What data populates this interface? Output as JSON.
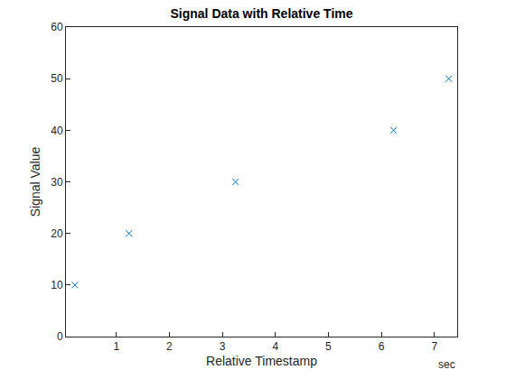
{
  "chart_data": {
    "type": "scatter",
    "title": "Signal Data with Relative Time",
    "x_label": "Relative Timestamp",
    "y_label": "Signal Value",
    "annotations": [
      {
        "text": "sec"
      }
    ],
    "x": [
      0.22,
      1.24,
      3.25,
      6.23,
      7.27
    ],
    "values": [
      10,
      20,
      30,
      40,
      50
    ],
    "color": "#0072bd",
    "marker": "x",
    "xlim": [
      0.05,
      7.43
    ],
    "xticks": [
      1,
      2,
      3,
      4,
      5,
      6,
      7
    ],
    "ylim": [
      0,
      60
    ],
    "yticks": [
      0,
      10,
      20,
      30,
      40,
      50,
      60
    ],
    "grid": false
  }
}
